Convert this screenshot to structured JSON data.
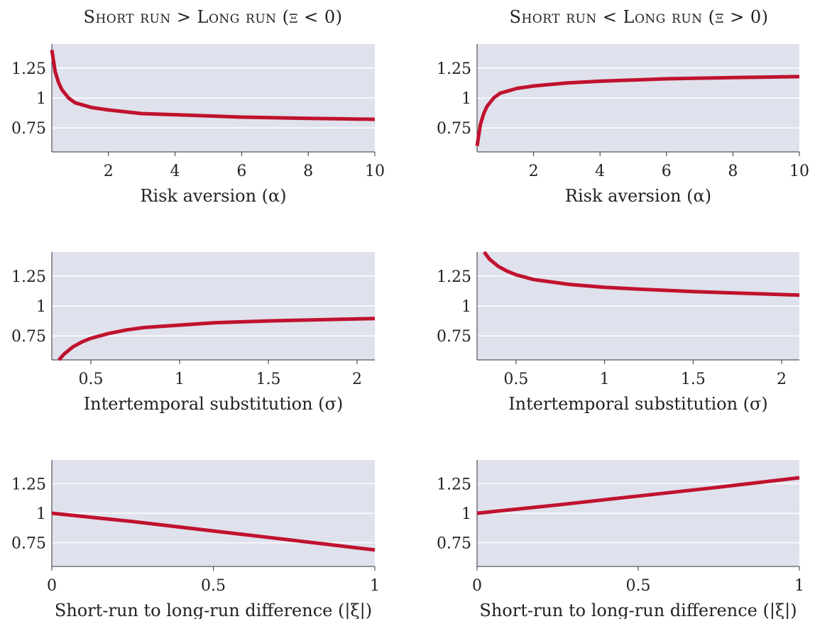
{
  "columns": [
    {
      "title": "Short run > Long run (ξ < 0)"
    },
    {
      "title": "Short run < Long run (ξ > 0)"
    }
  ],
  "colors": {
    "panel_bg": "#dfe1ec",
    "gridline": "#ffffff",
    "line": "#c0122e",
    "axis": "#333333"
  },
  "chart_data": [
    {
      "type": "line",
      "row": 1,
      "column": 1,
      "xlabel": "Risk aversion (α)",
      "ylabel": "",
      "xlim": [
        0.3,
        10
      ],
      "ylim": [
        0.55,
        1.45
      ],
      "xticks": [
        2,
        4,
        6,
        8,
        10
      ],
      "xtick_labels": [
        "2",
        "4",
        "6",
        "8",
        "10"
      ],
      "yticks": [
        0.75,
        1,
        1.25
      ],
      "ytick_labels": [
        "0.75",
        "1",
        "1.25"
      ],
      "series": [
        {
          "x": [
            0.3,
            0.4,
            0.5,
            0.6,
            0.8,
            1,
            1.5,
            2,
            3,
            4,
            5,
            6,
            7,
            8,
            9,
            10
          ],
          "y": [
            1.4,
            1.22,
            1.13,
            1.07,
            1.0,
            0.96,
            0.92,
            0.9,
            0.87,
            0.86,
            0.85,
            0.84,
            0.835,
            0.83,
            0.826,
            0.822
          ]
        }
      ]
    },
    {
      "type": "line",
      "row": 1,
      "column": 2,
      "xlabel": "Risk aversion (α)",
      "ylabel": "",
      "xlim": [
        0.3,
        10
      ],
      "ylim": [
        0.55,
        1.45
      ],
      "xticks": [
        2,
        4,
        6,
        8,
        10
      ],
      "xtick_labels": [
        "2",
        "4",
        "6",
        "8",
        "10"
      ],
      "yticks": [
        0.75,
        1,
        1.25
      ],
      "ytick_labels": [
        "0.75",
        "1",
        "1.25"
      ],
      "series": [
        {
          "x": [
            0.3,
            0.4,
            0.5,
            0.6,
            0.8,
            1,
            1.5,
            2,
            3,
            4,
            5,
            6,
            7,
            8,
            9,
            10
          ],
          "y": [
            0.6,
            0.78,
            0.87,
            0.93,
            1.0,
            1.04,
            1.08,
            1.1,
            1.125,
            1.14,
            1.15,
            1.16,
            1.165,
            1.17,
            1.174,
            1.178
          ]
        }
      ]
    },
    {
      "type": "line",
      "row": 2,
      "column": 1,
      "xlabel": "Intertemporal substitution (σ)",
      "ylabel": "",
      "xlim": [
        0.28,
        2.1
      ],
      "ylim": [
        0.55,
        1.45
      ],
      "xticks": [
        0.5,
        1,
        1.5,
        2
      ],
      "xtick_labels": [
        "0.5",
        "1",
        "1.5",
        "2"
      ],
      "yticks": [
        0.75,
        1,
        1.25
      ],
      "ytick_labels": [
        "0.75",
        "1",
        "1.25"
      ],
      "series": [
        {
          "x": [
            0.32,
            0.35,
            0.4,
            0.45,
            0.5,
            0.6,
            0.7,
            0.8,
            1,
            1.2,
            1.5,
            1.8,
            2.1
          ],
          "y": [
            0.55,
            0.6,
            0.66,
            0.7,
            0.73,
            0.77,
            0.8,
            0.82,
            0.84,
            0.86,
            0.875,
            0.885,
            0.895
          ]
        }
      ]
    },
    {
      "type": "line",
      "row": 2,
      "column": 2,
      "xlabel": "Intertemporal substitution (σ)",
      "ylabel": "",
      "xlim": [
        0.28,
        2.1
      ],
      "ylim": [
        0.55,
        1.45
      ],
      "xticks": [
        0.5,
        1,
        1.5,
        2
      ],
      "xtick_labels": [
        "0.5",
        "1",
        "1.5",
        "2"
      ],
      "yticks": [
        0.75,
        1,
        1.25
      ],
      "ytick_labels": [
        "0.75",
        "1",
        "1.25"
      ],
      "series": [
        {
          "x": [
            0.32,
            0.35,
            0.4,
            0.45,
            0.5,
            0.6,
            0.7,
            0.8,
            1,
            1.2,
            1.5,
            1.8,
            2.1
          ],
          "y": [
            1.45,
            1.39,
            1.33,
            1.29,
            1.26,
            1.22,
            1.2,
            1.18,
            1.155,
            1.14,
            1.12,
            1.105,
            1.09
          ]
        }
      ]
    },
    {
      "type": "line",
      "row": 3,
      "column": 1,
      "xlabel": "Short-run to long-run difference (|ξ|)",
      "ylabel": "",
      "xlim": [
        0,
        1
      ],
      "ylim": [
        0.55,
        1.45
      ],
      "xticks": [
        0,
        0.5,
        1
      ],
      "xtick_labels": [
        "0",
        "0.5",
        "1"
      ],
      "yticks": [
        0.75,
        1,
        1.25
      ],
      "ytick_labels": [
        "0.75",
        "1",
        "1.25"
      ],
      "series": [
        {
          "x": [
            0,
            0.25,
            0.5,
            0.75,
            1
          ],
          "y": [
            1.0,
            0.93,
            0.85,
            0.77,
            0.69
          ]
        }
      ]
    },
    {
      "type": "line",
      "row": 3,
      "column": 2,
      "xlabel": "Short-run to long-run difference (|ξ|)",
      "ylabel": "",
      "xlim": [
        0,
        1
      ],
      "ylim": [
        0.55,
        1.45
      ],
      "xticks": [
        0,
        0.5,
        1
      ],
      "xtick_labels": [
        "0",
        "0.5",
        "1"
      ],
      "yticks": [
        0.75,
        1,
        1.25
      ],
      "ytick_labels": [
        "0.75",
        "1",
        "1.25"
      ],
      "series": [
        {
          "x": [
            0,
            0.25,
            0.5,
            0.75,
            1
          ],
          "y": [
            1.0,
            1.07,
            1.145,
            1.22,
            1.3
          ]
        }
      ]
    }
  ]
}
